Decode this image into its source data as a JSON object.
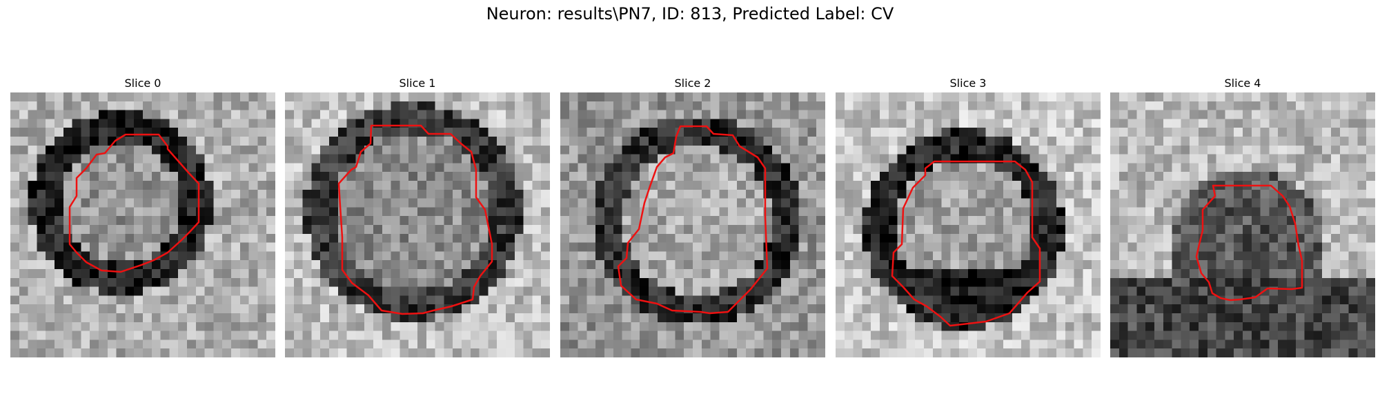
{
  "figure": {
    "title": "Neuron: results\\PN7, ID: 813, Predicted Label: CV"
  },
  "panels": [
    {
      "title": "Slice 0"
    },
    {
      "title": "Slice 1"
    },
    {
      "title": "Slice 2"
    },
    {
      "title": "Slice 3"
    },
    {
      "title": "Slice 4"
    }
  ],
  "colors": {
    "contour": "#ee1111",
    "colormap": "gray"
  }
}
